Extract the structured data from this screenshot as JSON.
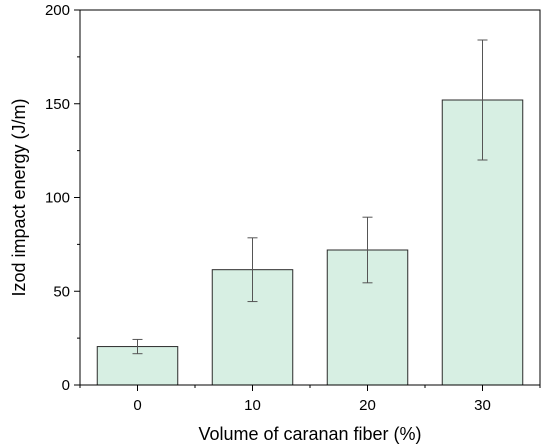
{
  "chart_data": {
    "type": "bar",
    "categories": [
      "0",
      "10",
      "20",
      "30"
    ],
    "values": [
      20.5,
      61.5,
      72,
      152
    ],
    "errors": [
      3.8,
      17,
      17.5,
      32
    ],
    "xlabel": "Volume of caranan fiber (%)",
    "ylabel": "Izod impact energy (J/m)",
    "ylim": [
      0,
      200
    ],
    "yticks": [
      0,
      50,
      100,
      150,
      200
    ],
    "grid": false,
    "bar_fill": "#d7efe3",
    "bar_stroke": "#2b2b2b",
    "axis_color": "#000000",
    "error_color": "#555555"
  }
}
